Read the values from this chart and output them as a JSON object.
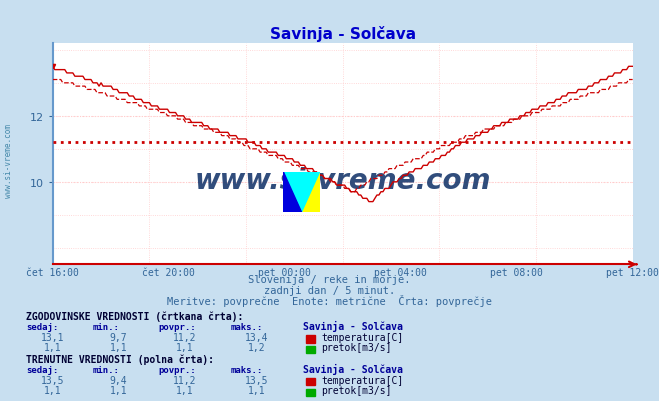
{
  "title": "Savinja - Solčava",
  "title_color": "#0000cc",
  "bg_color": "#c8dff0",
  "plot_bg_color": "#ffffff",
  "grid_color_h": "#ffcccc",
  "grid_color_v": "#ffcccc",
  "grid_color_bold": "#aaaaff",
  "line_color_temp": "#cc0000",
  "line_color_flow": "#00aa00",
  "avg_line_color": "#cc0000",
  "watermark_text": "www.si-vreme.com",
  "watermark_color": "#1a3a6e",
  "left_axis_color": "#6699cc",
  "bottom_axis_color": "#cc0000",
  "subtitle1": "Slovenija / reke in morje.",
  "subtitle2": "zadnji dan / 5 minut.",
  "subtitle3": "Meritve: povprečne  Enote: metrične  Črta: povprečje",
  "xlabel_ticks": [
    "čet 16:00",
    "čet 20:00",
    "pet 00:00",
    "pet 04:00",
    "pet 08:00",
    "pet 12:00"
  ],
  "yticks": [
    10,
    12
  ],
  "ylim": [
    7.5,
    14.2
  ],
  "temp_avg_value": 11.2,
  "n_points": 289,
  "legend_hist_label": "ZGODOVINSKE VREDNOSTI (črtkana črta):",
  "legend_curr_label": "TRENUTNE VREDNOSTI (polna črta):",
  "station_name": "Savinja - Solčava",
  "hist_sedaj": "13,1",
  "hist_min": "9,7",
  "hist_povpr": "11,2",
  "hist_maks": "13,4",
  "hist_temp_label": "temperatura[C]",
  "hist_flow_sedaj": "1,1",
  "hist_flow_min": "1,1",
  "hist_flow_povpr": "1,1",
  "hist_flow_maks": "1,2",
  "hist_flow_label": "pretok[m3/s]",
  "curr_sedaj": "13,5",
  "curr_min": "9,4",
  "curr_povpr": "11,2",
  "curr_maks": "13,5",
  "curr_temp_label": "temperatura[C]",
  "curr_flow_sedaj": "1,1",
  "curr_flow_min": "1,1",
  "curr_flow_povpr": "1,1",
  "curr_flow_maks": "1,1",
  "curr_flow_label": "pretok[m3/s]",
  "temp_color_box": "#cc0000",
  "flow_color_box": "#00aa00"
}
